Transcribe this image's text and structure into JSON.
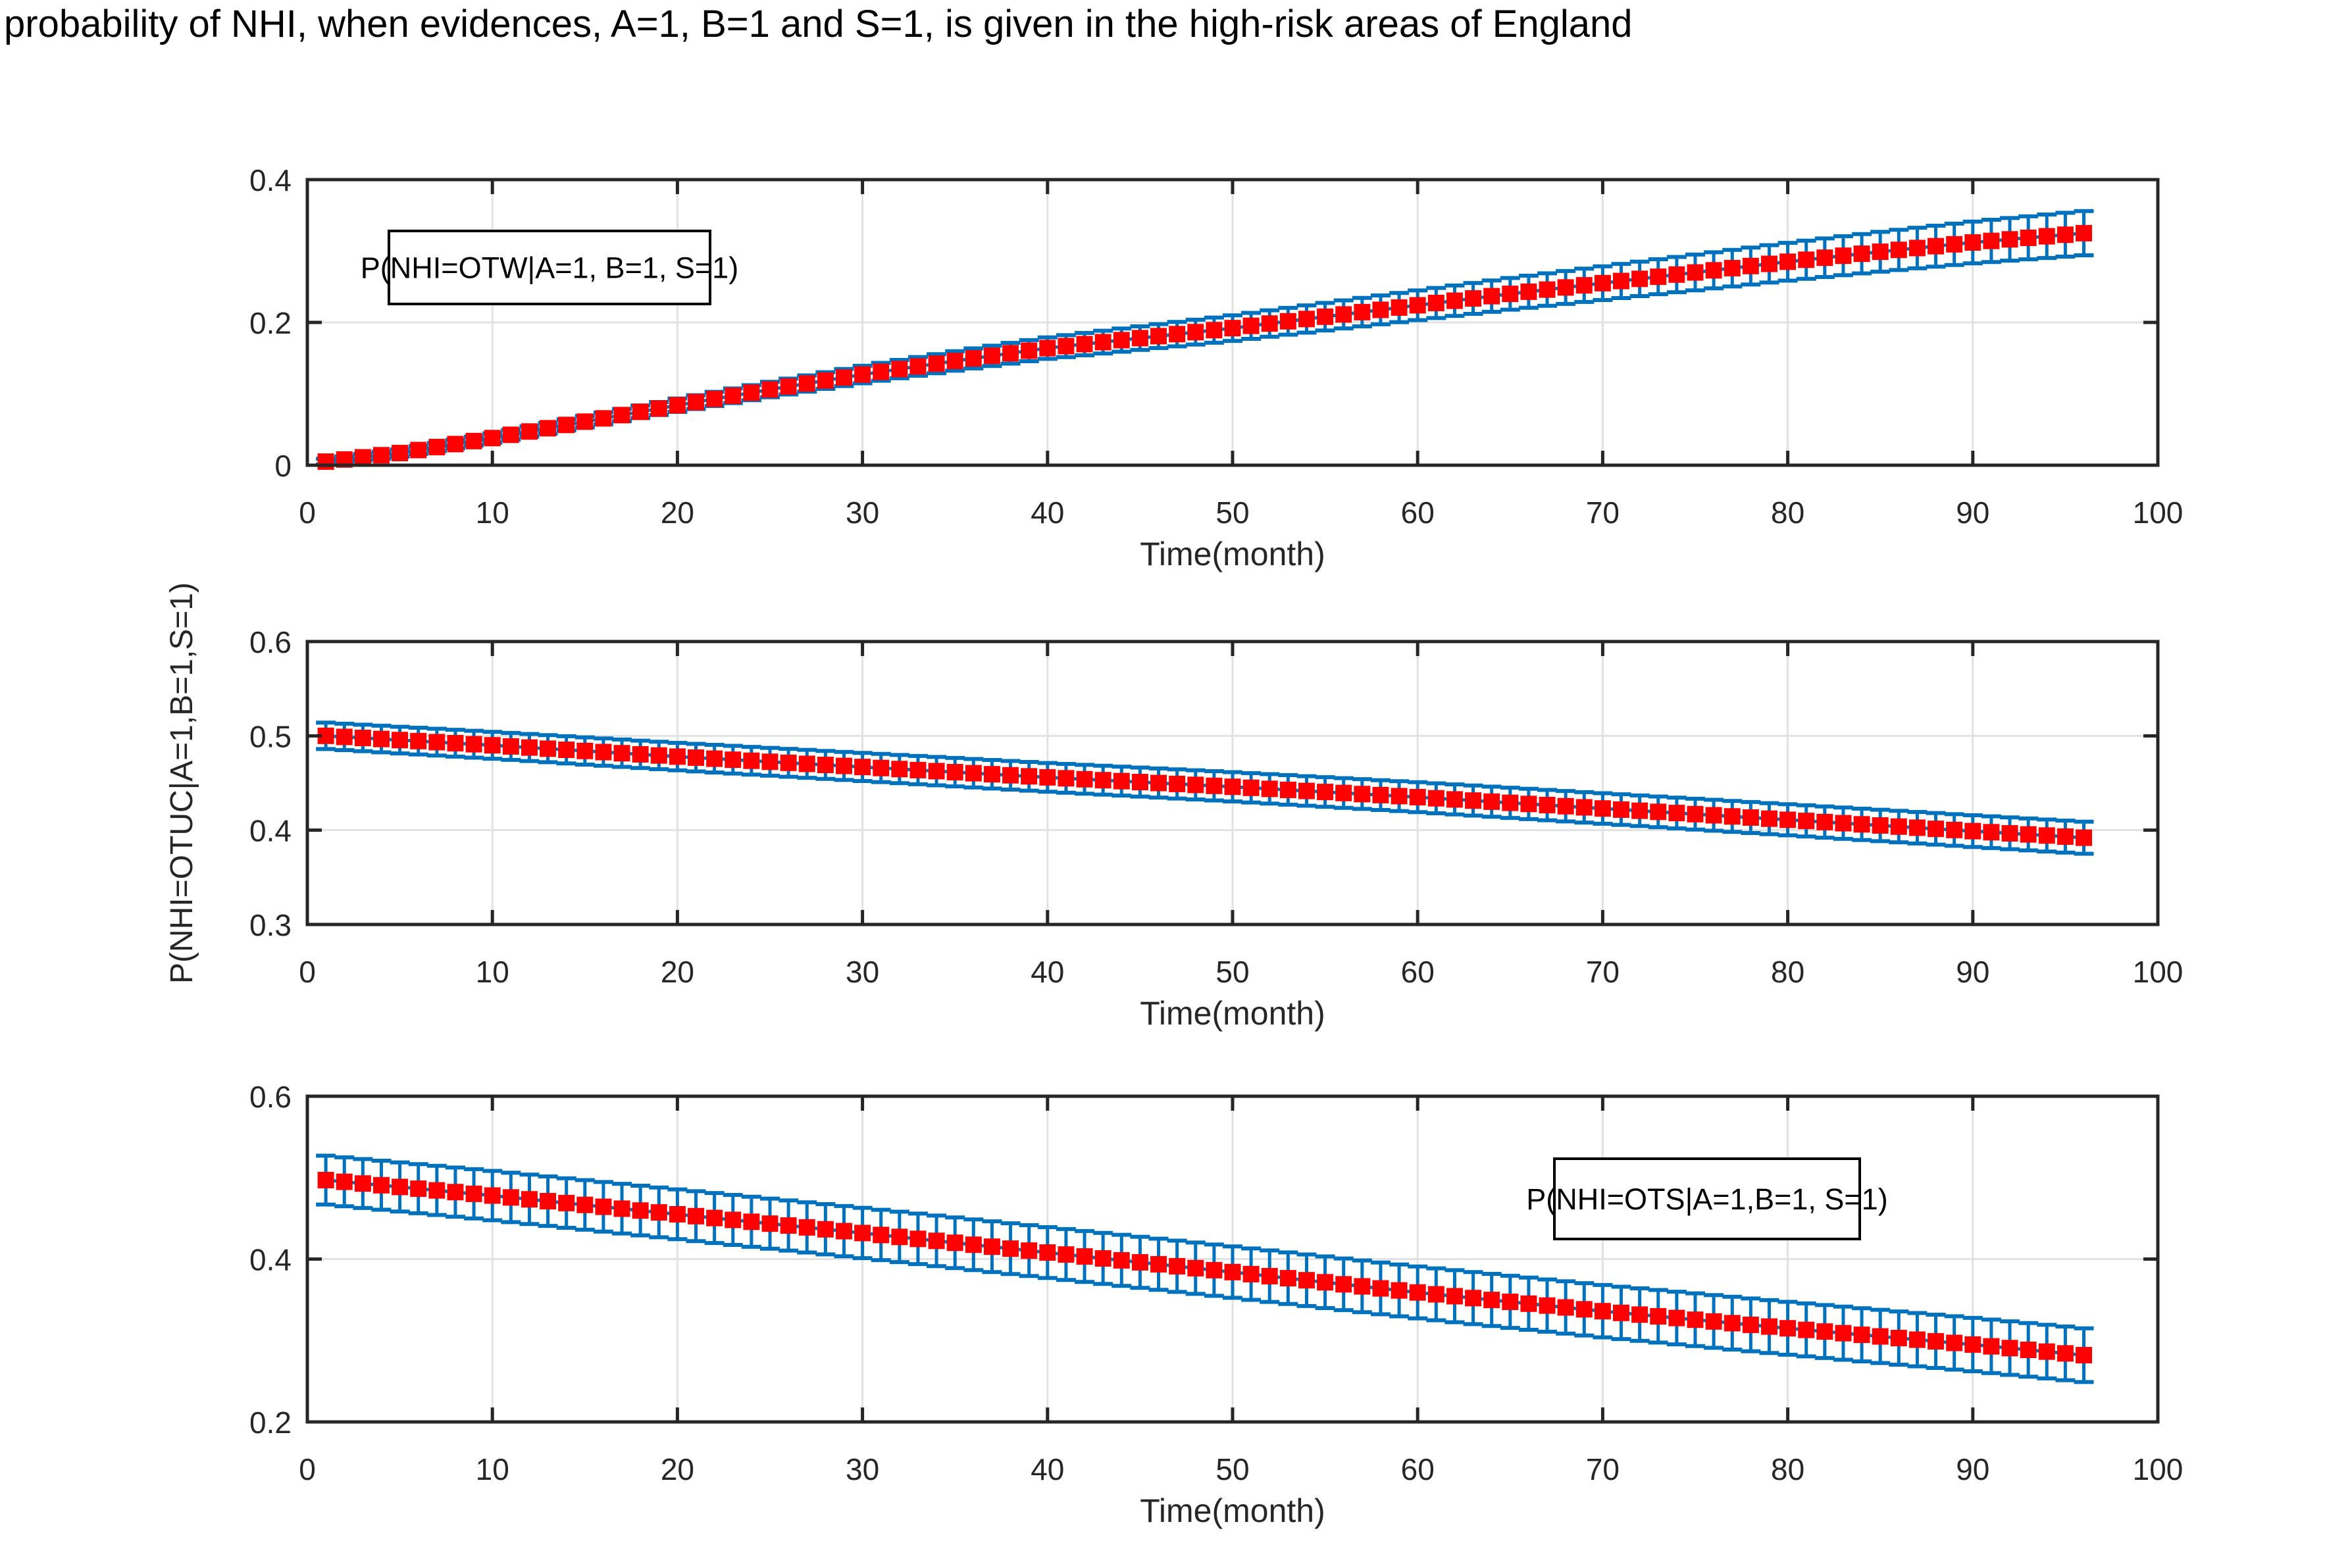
{
  "figure": {
    "title": "probability of NHI, when evidences, A=1, B=1 and S=1, is given in the high-risk areas of England",
    "background": "#ffffff"
  },
  "colors": {
    "marker_red": "#ff0000",
    "errorbar_blue": "#0072bd",
    "grid_gray": "#e2e2e2",
    "axis_dark": "#262626",
    "tick_text": "#262626",
    "title_text": "#000000",
    "legend_border": "#000000",
    "legend_fill": "#ffffff"
  },
  "chart_data": [
    {
      "id": "otw",
      "type": "line",
      "style": "errorbar-line-with-square-markers",
      "legend_label": "P(NHI=OTW|A=1, B=1, S=1)",
      "xlabel": "Time(month)",
      "xlim": [
        0,
        100
      ],
      "ylim": [
        0,
        0.4
      ],
      "xticks": [
        0,
        10,
        20,
        30,
        40,
        50,
        60,
        70,
        80,
        90,
        100
      ],
      "xtick_labels": [
        "0",
        "10",
        "20",
        "30",
        "40",
        "50",
        "60",
        "70",
        "80",
        "90",
        "100"
      ],
      "yticks": [
        0,
        0.2,
        0.4
      ],
      "ytick_labels": [
        "0",
        "0.2",
        "0.4"
      ],
      "grid": true,
      "points_every_month": true,
      "series": {
        "name": "P(NHI=OTW|A=1, B=1, S=1)",
        "x_start": 1,
        "x_end": 96,
        "anchors": [
          [
            1,
            0.005
          ],
          [
            5,
            0.017
          ],
          [
            10,
            0.038
          ],
          [
            15,
            0.061
          ],
          [
            20,
            0.084
          ],
          [
            25,
            0.106
          ],
          [
            30,
            0.127
          ],
          [
            35,
            0.146
          ],
          [
            40,
            0.164
          ],
          [
            45,
            0.178
          ],
          [
            50,
            0.192
          ],
          [
            55,
            0.208
          ],
          [
            60,
            0.224
          ],
          [
            65,
            0.24
          ],
          [
            70,
            0.255
          ],
          [
            75,
            0.27
          ],
          [
            80,
            0.285
          ],
          [
            85,
            0.299
          ],
          [
            90,
            0.312
          ],
          [
            96,
            0.325
          ]
        ],
        "err_half_width_start": 0.004,
        "err_half_width_end": 0.031
      }
    },
    {
      "id": "otuc",
      "type": "line",
      "style": "errorbar-line-with-square-markers",
      "ylabel": "P(NHI=OTUC|A=1,B=1,S=1)",
      "xlabel": "Time(month)",
      "xlim": [
        0,
        100
      ],
      "ylim": [
        0.3,
        0.6
      ],
      "xticks": [
        0,
        10,
        20,
        30,
        40,
        50,
        60,
        70,
        80,
        90,
        100
      ],
      "xtick_labels": [
        "0",
        "10",
        "20",
        "30",
        "40",
        "50",
        "60",
        "70",
        "80",
        "90",
        "100"
      ],
      "yticks": [
        0.3,
        0.4,
        0.5,
        0.6
      ],
      "ytick_labels": [
        "0.3",
        "0.4",
        "0.5",
        "0.6"
      ],
      "grid": true,
      "points_every_month": true,
      "series": {
        "name": "P(NHI=OTUC|A=1,B=1,S=1)",
        "x_start": 1,
        "x_end": 96,
        "anchors": [
          [
            1,
            0.5
          ],
          [
            10,
            0.49
          ],
          [
            20,
            0.478
          ],
          [
            30,
            0.467
          ],
          [
            40,
            0.456
          ],
          [
            50,
            0.446
          ],
          [
            60,
            0.435
          ],
          [
            70,
            0.423
          ],
          [
            80,
            0.411
          ],
          [
            90,
            0.399
          ],
          [
            96,
            0.392
          ]
        ],
        "err_half_width_start": 0.014,
        "err_half_width_end": 0.017
      }
    },
    {
      "id": "ots",
      "type": "line",
      "style": "errorbar-line-with-square-markers",
      "legend_label": "P(NHI=OTS|A=1,B=1, S=1)",
      "xlabel": "Time(month)",
      "xlim": [
        0,
        100
      ],
      "ylim": [
        0.2,
        0.6
      ],
      "xticks": [
        0,
        10,
        20,
        30,
        40,
        50,
        60,
        70,
        80,
        90,
        100
      ],
      "xtick_labels": [
        "0",
        "10",
        "20",
        "30",
        "40",
        "50",
        "60",
        "70",
        "80",
        "90",
        "100"
      ],
      "yticks": [
        0.2,
        0.4,
        0.6
      ],
      "ytick_labels": [
        "0.2",
        "0.4",
        "0.6"
      ],
      "grid": true,
      "points_every_month": true,
      "series": {
        "name": "P(NHI=OTS|A=1,B=1, S=1)",
        "x_start": 1,
        "x_end": 96,
        "anchors": [
          [
            1,
            0.497
          ],
          [
            10,
            0.478
          ],
          [
            20,
            0.455
          ],
          [
            30,
            0.432
          ],
          [
            40,
            0.408
          ],
          [
            50,
            0.384
          ],
          [
            60,
            0.359
          ],
          [
            70,
            0.336
          ],
          [
            80,
            0.315
          ],
          [
            90,
            0.295
          ],
          [
            96,
            0.282
          ]
        ],
        "err_half_width_start": 0.03,
        "err_half_width_end": 0.033
      }
    }
  ]
}
